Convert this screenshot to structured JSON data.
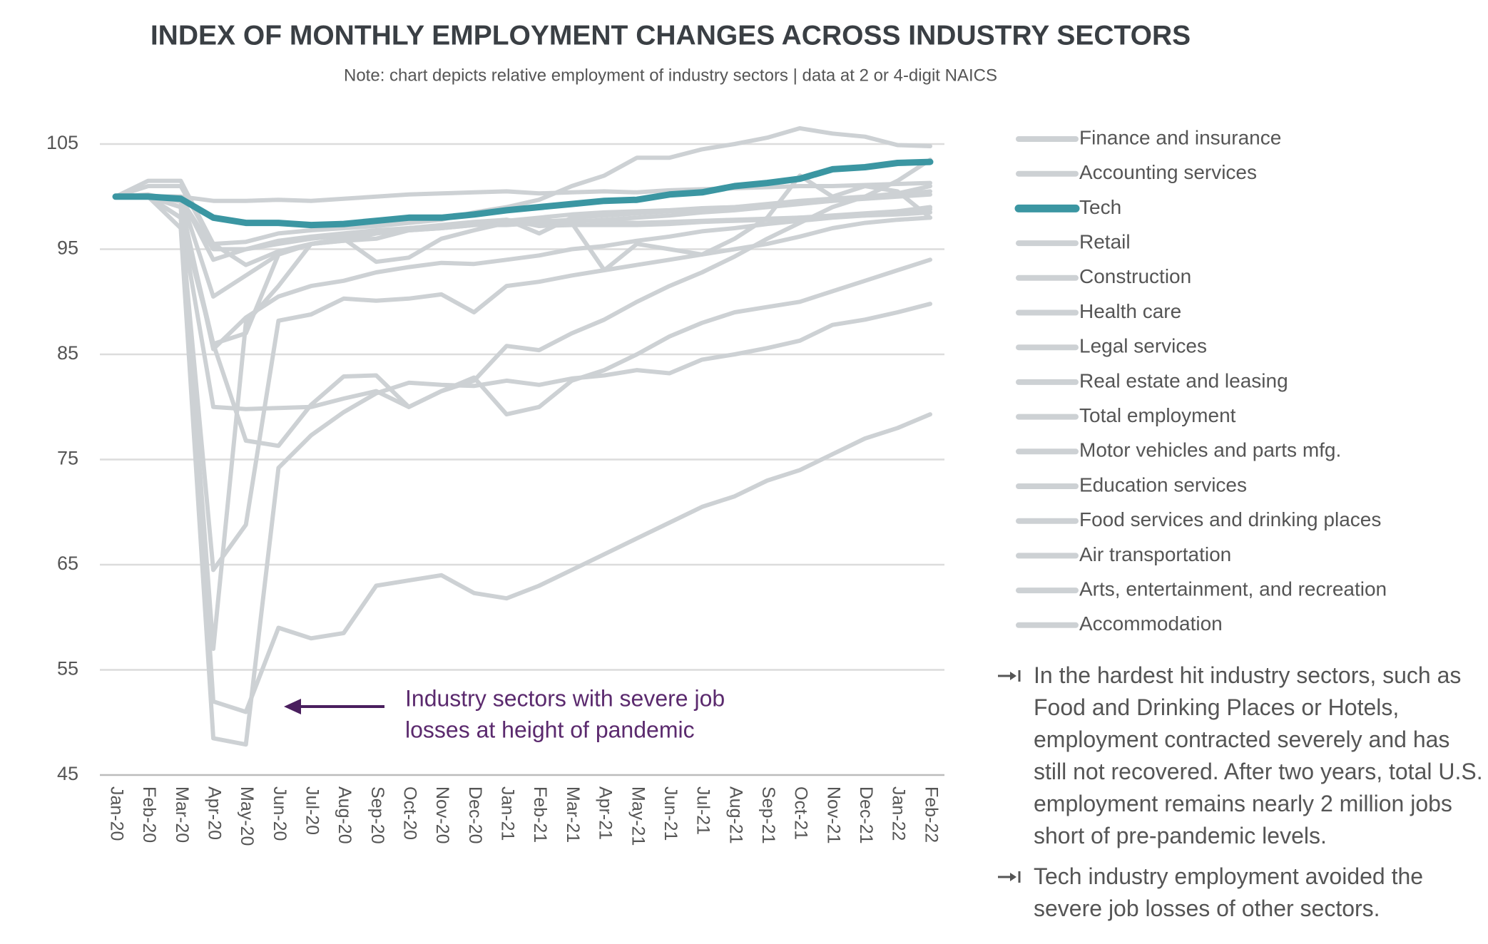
{
  "chart_data": {
    "type": "line",
    "title": "INDEX OF MONTHLY EMPLOYMENT CHANGES ACROSS INDUSTRY SECTORS",
    "subtitle": "Note: chart depicts relative employment of industry sectors | data at 2 or 4-digit NAICS",
    "categories": [
      "Jan-20",
      "Feb-20",
      "Mar-20",
      "Apr-20",
      "May-20",
      "Jun-20",
      "Jul-20",
      "Aug-20",
      "Sep-20",
      "Oct-20",
      "Nov-20",
      "Dec-20",
      "Jan-21",
      "Feb-21",
      "Mar-21",
      "Apr-21",
      "May-21",
      "Jun-21",
      "Jul-21",
      "Aug-21",
      "Sep-21",
      "Oct-21",
      "Nov-21",
      "Dec-21",
      "Jan-22",
      "Feb-22"
    ],
    "ylim": [
      45,
      105
    ],
    "yticks": [
      45,
      55,
      65,
      75,
      85,
      95,
      105
    ],
    "grid": true,
    "legend": "right",
    "series": [
      {
        "name": "Finance and insurance",
        "color": "#cdd1d4",
        "values": [
          100,
          100,
          100,
          99.6,
          99.6,
          99.7,
          99.6,
          99.8,
          100,
          100.2,
          100.3,
          100.4,
          100.5,
          100.3,
          100.4,
          100.5,
          100.4,
          100.6,
          100.7,
          100.8,
          100.9,
          101,
          101,
          101.1,
          101.2,
          101.3
        ]
      },
      {
        "name": "Accounting services",
        "color": "#cdd1d4",
        "values": [
          100,
          101.5,
          101.5,
          95.5,
          95.7,
          96.5,
          96.8,
          97,
          97.2,
          97.5,
          97.8,
          98.5,
          99,
          99.7,
          101,
          102,
          103.7,
          103.7,
          104.5,
          105,
          105.6,
          106.5,
          106,
          105.7,
          104.9,
          104.8
        ]
      },
      {
        "name": "Tech",
        "color": "#3b96a2",
        "values": [
          100,
          100,
          99.8,
          98,
          97.5,
          97.5,
          97.3,
          97.4,
          97.7,
          98,
          98,
          98.3,
          98.7,
          99,
          99.3,
          99.6,
          99.7,
          100.2,
          100.4,
          101,
          101.3,
          101.7,
          102.6,
          102.8,
          103.2,
          103.3
        ]
      },
      {
        "name": "Retail",
        "color": "#cdd1d4",
        "values": [
          100,
          100,
          99,
          86,
          87,
          94.5,
          95.5,
          95.8,
          96,
          96.8,
          97,
          97.3,
          97.5,
          97.6,
          97.8,
          97.6,
          97.5,
          97.6,
          97.7,
          97.8,
          97.9,
          98,
          98.1,
          98.2,
          98.3,
          98.5
        ]
      },
      {
        "name": "Construction",
        "color": "#cdd1d4",
        "values": [
          100,
          100,
          100,
          94,
          95,
          95.5,
          96,
          96.3,
          96.7,
          97,
          97.2,
          97.5,
          97.7,
          98,
          98.3,
          98.5,
          98.6,
          98.7,
          98.9,
          99,
          99.2,
          99.4,
          99.6,
          99.8,
          100,
          100.2
        ]
      },
      {
        "name": "Health care",
        "color": "#cdd1d4",
        "values": [
          100,
          100,
          100,
          90.5,
          92.5,
          94.5,
          95.5,
          96,
          96.5,
          96.8,
          97,
          97.3,
          97.3,
          97.5,
          97.6,
          97.8,
          98,
          98.2,
          98.5,
          98.7,
          99,
          99.3,
          99.6,
          99.9,
          100.2,
          100.5
        ]
      },
      {
        "name": "Legal services",
        "color": "#cdd1d4",
        "values": [
          100,
          100,
          99.8,
          95,
          95,
          95.8,
          96.2,
          96.5,
          96.8,
          97,
          97.3,
          97.6,
          97.8,
          97.2,
          97.3,
          97.3,
          97.3,
          97.4,
          97.6,
          97.7,
          97.8,
          98,
          98.2,
          98.4,
          98.6,
          98.8
        ]
      },
      {
        "name": "Real estate and leasing",
        "color": "#cdd1d4",
        "values": [
          100,
          101,
          101,
          95.5,
          93.5,
          94.8,
          95.5,
          95.8,
          96.5,
          97,
          97.2,
          97.5,
          97.8,
          96.5,
          98,
          98.2,
          98.4,
          98.6,
          98.8,
          99,
          99.3,
          99.6,
          99.8,
          100,
          100.3,
          101
        ]
      },
      {
        "name": "Total employment",
        "color": "#cdd1d4",
        "values": [
          100,
          100.2,
          99.5,
          85.5,
          88.5,
          90.5,
          91.5,
          92,
          92.8,
          93.3,
          93.7,
          93.6,
          94,
          94.4,
          95,
          95.3,
          95.8,
          96.2,
          96.7,
          97,
          97.4,
          97.7,
          98,
          98.2,
          98.6,
          99
        ]
      },
      {
        "name": "Motor vehicles and parts mfg.",
        "color": "#cdd1d4",
        "values": [
          100,
          100,
          98,
          57,
          88,
          91.5,
          95.5,
          96,
          93.8,
          94.2,
          96,
          96.8,
          97.5,
          97.8,
          97.5,
          93,
          95.5,
          95,
          94.5,
          96,
          98,
          102,
          100,
          101,
          100.5,
          98
        ]
      },
      {
        "name": "Education services",
        "color": "#cdd1d4",
        "values": [
          100,
          100,
          98,
          80,
          79.8,
          79.9,
          80,
          80.8,
          81.5,
          80,
          81.5,
          82.5,
          85.8,
          85.4,
          87,
          88.3,
          90,
          91.5,
          92.8,
          94.3,
          96,
          97.5,
          99,
          100,
          101.5,
          103.5
        ]
      },
      {
        "name": "Food services and drinking places",
        "color": "#cdd1d4",
        "values": [
          100,
          100,
          98,
          64.5,
          68.8,
          88.2,
          88.8,
          90.3,
          90.1,
          90.3,
          90.7,
          89,
          91.5,
          91.9,
          92.5,
          93,
          93.5,
          94,
          94.5,
          95,
          95.5,
          96.2,
          97,
          97.5,
          97.8,
          98
        ]
      },
      {
        "name": "Air transportation",
        "color": "#cdd1d4",
        "values": [
          100,
          100,
          98,
          86,
          76.8,
          76.3,
          80.2,
          82.9,
          83,
          80,
          81.5,
          82.8,
          79.3,
          80,
          82.5,
          83.5,
          85,
          86.7,
          88,
          89,
          89.5,
          90,
          91,
          92,
          93,
          94
        ]
      },
      {
        "name": "Arts, entertainment, and recreation",
        "color": "#cdd1d4",
        "values": [
          100,
          100,
          97,
          48.5,
          47.9,
          74.2,
          77.3,
          79.5,
          81.3,
          82.3,
          82.1,
          82,
          82.5,
          82.1,
          82.7,
          83,
          83.5,
          83.2,
          84.5,
          85,
          85.6,
          86.3,
          87.8,
          88.3,
          89,
          89.8
        ]
      },
      {
        "name": "Accommodation",
        "color": "#cdd1d4",
        "values": [
          100,
          100,
          99,
          52,
          51,
          59,
          58,
          58.5,
          63,
          63.5,
          64,
          62.3,
          61.8,
          63,
          64.5,
          66,
          67.5,
          69,
          70.5,
          71.5,
          73,
          74,
          75.5,
          77,
          78,
          79.3
        ]
      }
    ],
    "annotation": [
      "Industry sectors with severe job",
      "losses at height of pandemic"
    ],
    "notes": [
      "In the hardest hit industry sectors, such as Food and Drinking Places or Hotels, employment contracted severely and has still not recovered. After two years, total U.S. employment remains nearly 2 million jobs short of pre-pandemic levels.",
      "Tech industry employment avoided the severe job losses of other sectors."
    ]
  }
}
